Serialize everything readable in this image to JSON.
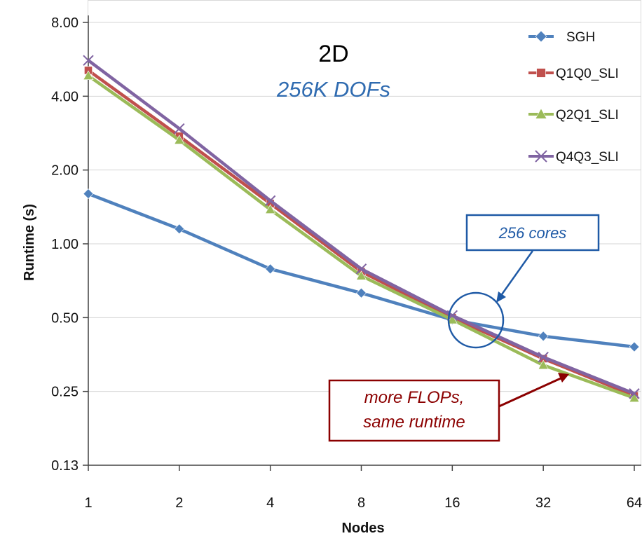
{
  "chart_data": {
    "type": "line",
    "title": "2D",
    "subtitle": "256K DOFs",
    "xlabel": "Nodes",
    "ylabel": "Runtime (s)",
    "x": [
      1,
      2,
      4,
      8,
      16,
      32,
      64
    ],
    "x_tick_labels": [
      "1",
      "2",
      "4",
      "8",
      "16",
      "32",
      "64"
    ],
    "y_scale": "log2",
    "ylim": [
      0.125,
      8
    ],
    "y_ticks": [
      0.125,
      0.25,
      0.5,
      1,
      2,
      4,
      8
    ],
    "y_tick_labels": [
      "0.13",
      "0.25",
      "0.50",
      "1.00",
      "2.00",
      "4.00",
      "8.00"
    ],
    "grid": "horizontal",
    "legend_position": "top-right",
    "series": [
      {
        "name": "SGH",
        "color": "#4f81bd",
        "marker": "diamond",
        "values": [
          1.6,
          1.15,
          0.79,
          0.63,
          0.49,
          0.42,
          0.38
        ]
      },
      {
        "name": "Q1Q0_SLI",
        "color": "#c0504d",
        "marker": "square",
        "values": [
          5.1,
          2.75,
          1.46,
          0.77,
          0.5,
          0.34,
          0.24
        ]
      },
      {
        "name": "Q2Q1_SLI",
        "color": "#9bbb59",
        "marker": "triangle",
        "values": [
          4.85,
          2.65,
          1.38,
          0.74,
          0.49,
          0.32,
          0.235
        ]
      },
      {
        "name": "Q4Q3_SLI",
        "color": "#8064a2",
        "marker": "x",
        "values": [
          5.6,
          2.95,
          1.5,
          0.79,
          0.51,
          0.345,
          0.245
        ]
      }
    ],
    "annotations": [
      {
        "text": "256 cores",
        "color": "#1f5aa6"
      },
      {
        "text_lines": [
          "more FLOPs,",
          "same runtime"
        ],
        "color": "#8b0000"
      }
    ]
  }
}
